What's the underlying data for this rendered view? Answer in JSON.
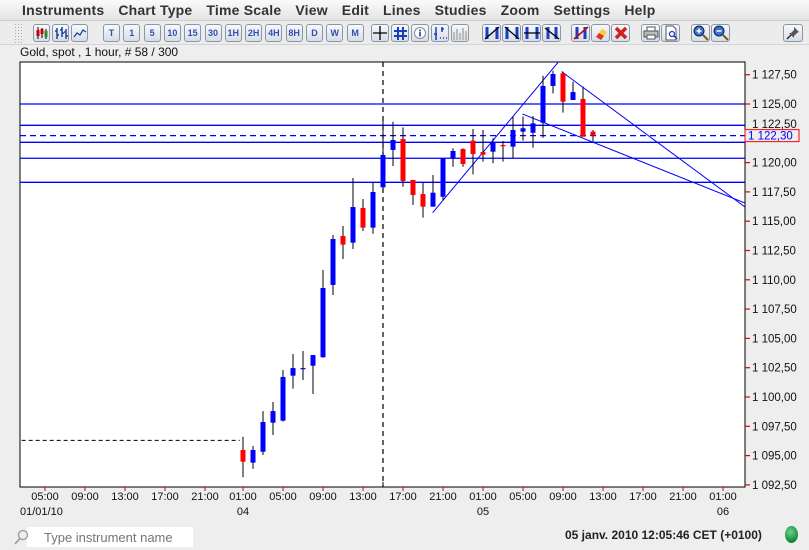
{
  "menu": [
    "Instruments",
    "Chart Type",
    "Time Scale",
    "View",
    "Edit",
    "Lines",
    "Studies",
    "Zoom",
    "Settings",
    "Help"
  ],
  "toolbar": {
    "chart_types": [
      "candlestick-icon",
      "bar-chart-icon",
      "line-chart-icon"
    ],
    "timeframes": [
      "T",
      "1",
      "5",
      "10",
      "15",
      "30",
      "1H",
      "2H",
      "4H",
      "8H",
      "D",
      "W",
      "M"
    ],
    "tools": [
      "crosshair-icon",
      "grid-icon",
      "info-icon",
      "price-marker-icon",
      "volume-icon"
    ],
    "line_tools": [
      "line-up-icon",
      "line-down-icon",
      "horizontal-line-icon",
      "parallel-line-icon"
    ],
    "edit_tools": [
      "delete-line-icon",
      "eraser-icon",
      "delete-all-icon"
    ],
    "print_tools": [
      "print-icon",
      "print-preview-icon"
    ],
    "zoom_tools": [
      "zoom-in-icon",
      "zoom-out-icon"
    ],
    "pin": "pin-icon"
  },
  "info_line": "Gold, spot , 1 hour, # 58 / 300",
  "chart_data": {
    "type": "candlestick",
    "title": "Gold, spot , 1 hour, # 58 / 300",
    "colors": {
      "up": "#0000ff",
      "down": "#ff0000",
      "wick": "#000000",
      "lines": "#0000ff",
      "current_price_border": "#ff0000"
    },
    "ylim": [
      1092.5,
      1128.75
    ],
    "y_ticks": [
      "1 092,50",
      "1 095,00",
      "1 097,50",
      "1 100,00",
      "1 102,50",
      "1 105,00",
      "1 107,50",
      "1 110,00",
      "1 112,50",
      "1 115,00",
      "1 117,50",
      "1 120,00",
      "1 122,50",
      "1 125,00",
      "1 127,50"
    ],
    "y_tick_values": [
      1092.5,
      1095,
      1097.5,
      1100,
      1102.5,
      1105,
      1107.5,
      1110,
      1112.5,
      1115,
      1117.5,
      1120,
      1122.5,
      1125,
      1127.5
    ],
    "current_price": {
      "label": "1 122,30",
      "value": 1122.3
    },
    "x_ticks": [
      {
        "t": "01-01 05:00",
        "label": "05:00"
      },
      {
        "t": "01-01 09:00",
        "label": "09:00"
      },
      {
        "t": "01-01 13:00",
        "label": "13:00"
      },
      {
        "t": "01-01 17:00",
        "label": "17:00"
      },
      {
        "t": "01-01 21:00",
        "label": "21:00"
      },
      {
        "t": "01-04 01:00",
        "label": "01:00"
      },
      {
        "t": "01-04 05:00",
        "label": "05:00"
      },
      {
        "t": "01-04 09:00",
        "label": "09:00"
      },
      {
        "t": "01-04 13:00",
        "label": "13:00"
      },
      {
        "t": "01-04 17:00",
        "label": "17:00"
      },
      {
        "t": "01-04 21:00",
        "label": "21:00"
      },
      {
        "t": "01-05 01:00",
        "label": "01:00"
      },
      {
        "t": "01-05 05:00",
        "label": "05:00"
      },
      {
        "t": "01-05 09:00",
        "label": "09:00"
      },
      {
        "t": "01-05 13:00",
        "label": "13:00"
      },
      {
        "t": "01-05 17:00",
        "label": "17:00"
      },
      {
        "t": "01-05 21:00",
        "label": "21:00"
      },
      {
        "t": "01-06 01:00",
        "label": "01:00"
      }
    ],
    "date_labels": [
      {
        "t": "01-01 05:00",
        "label": "01/01/10"
      },
      {
        "t": "01-04 01:00",
        "label": "04"
      },
      {
        "t": "01-05 01:00",
        "label": "05"
      },
      {
        "t": "01-06 01:00",
        "label": "06"
      }
    ],
    "candles": [
      {
        "t": "01-04 01:00",
        "o": 1095.48,
        "h": 1096.61,
        "l": 1093.15,
        "c": 1094.48
      },
      {
        "t": "01-04 02:00",
        "o": 1094.4,
        "h": 1095.82,
        "l": 1093.88,
        "c": 1095.48
      },
      {
        "t": "01-04 03:00",
        "o": 1095.33,
        "h": 1098.8,
        "l": 1095.05,
        "c": 1097.87
      },
      {
        "t": "01-04 04:00",
        "o": 1097.81,
        "h": 1099.57,
        "l": 1096.76,
        "c": 1098.8
      },
      {
        "t": "01-04 05:00",
        "o": 1097.98,
        "h": 1102.3,
        "l": 1097.9,
        "c": 1101.71
      },
      {
        "t": "01-04 06:00",
        "o": 1101.82,
        "h": 1103.67,
        "l": 1100.71,
        "c": 1102.47
      },
      {
        "t": "01-04 07:00",
        "o": 1102.43,
        "h": 1103.93,
        "l": 1101.45,
        "c": 1102.47
      },
      {
        "t": "01-04 08:00",
        "o": 1102.67,
        "h": 1103.58,
        "l": 1100.26,
        "c": 1103.58
      },
      {
        "t": "01-04 09:00",
        "o": 1103.39,
        "h": 1110.84,
        "l": 1103.35,
        "c": 1109.3
      },
      {
        "t": "01-04 10:00",
        "o": 1109.56,
        "h": 1113.82,
        "l": 1108.7,
        "c": 1113.48
      },
      {
        "t": "01-04 11:00",
        "o": 1113.74,
        "h": 1114.59,
        "l": 1111.77,
        "c": 1113.0
      },
      {
        "t": "01-04 12:00",
        "o": 1113.17,
        "h": 1118.69,
        "l": 1112.63,
        "c": 1116.21
      },
      {
        "t": "01-04 13:00",
        "o": 1116.13,
        "h": 1116.89,
        "l": 1114.16,
        "c": 1114.45
      },
      {
        "t": "01-04 14:00",
        "o": 1114.45,
        "h": 1118.32,
        "l": 1113.93,
        "c": 1117.49
      },
      {
        "t": "01-04 15:00",
        "o": 1117.89,
        "h": 1123.63,
        "l": 1117.83,
        "c": 1120.65
      },
      {
        "t": "01-04 16:00",
        "o": 1121.08,
        "h": 1123.49,
        "l": 1119.71,
        "c": 1121.93
      },
      {
        "t": "01-04 17:00",
        "o": 1122.01,
        "h": 1123.01,
        "l": 1117.94,
        "c": 1118.43
      },
      {
        "t": "01-04 18:00",
        "o": 1118.52,
        "h": 1118.52,
        "l": 1116.38,
        "c": 1117.24
      },
      {
        "t": "01-04 19:00",
        "o": 1117.32,
        "h": 1118.28,
        "l": 1115.3,
        "c": 1116.24
      },
      {
        "t": "01-04 20:00",
        "o": 1116.24,
        "h": 1118.94,
        "l": 1116.24,
        "c": 1117.43
      },
      {
        "t": "01-04 21:00",
        "o": 1117.09,
        "h": 1120.37,
        "l": 1116.81,
        "c": 1120.37
      },
      {
        "t": "01-04 22:00",
        "o": 1120.37,
        "h": 1121.22,
        "l": 1119.65,
        "c": 1120.99
      },
      {
        "t": "01-04 23:00",
        "o": 1121.16,
        "h": 1121.22,
        "l": 1119.65,
        "c": 1119.88
      },
      {
        "t": "01-05 00:00",
        "o": 1121.87,
        "h": 1122.87,
        "l": 1119.0,
        "c": 1120.73
      },
      {
        "t": "01-05 01:00",
        "o": 1120.9,
        "h": 1122.78,
        "l": 1120.08,
        "c": 1120.67
      },
      {
        "t": "01-05 02:00",
        "o": 1120.93,
        "h": 1122.07,
        "l": 1119.94,
        "c": 1121.73
      },
      {
        "t": "01-05 03:00",
        "o": 1121.5,
        "h": 1121.84,
        "l": 1120.08,
        "c": 1121.4
      },
      {
        "t": "01-05 04:00",
        "o": 1121.36,
        "h": 1123.92,
        "l": 1120.37,
        "c": 1122.78
      },
      {
        "t": "01-05 05:00",
        "o": 1122.64,
        "h": 1123.92,
        "l": 1121.87,
        "c": 1122.93
      },
      {
        "t": "01-05 06:00",
        "o": 1122.55,
        "h": 1123.98,
        "l": 1121.27,
        "c": 1123.35
      },
      {
        "t": "01-05 07:00",
        "o": 1123.4,
        "h": 1127.41,
        "l": 1122.12,
        "c": 1126.54
      },
      {
        "t": "01-05 08:00",
        "o": 1126.54,
        "h": 1127.84,
        "l": 1125.91,
        "c": 1127.56
      },
      {
        "t": "01-05 09:00",
        "o": 1127.62,
        "h": 1127.76,
        "l": 1124.26,
        "c": 1125.2
      },
      {
        "t": "01-05 10:00",
        "o": 1125.34,
        "h": 1126.9,
        "l": 1125.34,
        "c": 1126.02
      },
      {
        "t": "01-05 11:00",
        "o": 1125.43,
        "h": 1126.48,
        "l": 1122.21,
        "c": 1122.21
      },
      {
        "t": "01-05 12:00",
        "o": 1122.64,
        "h": 1122.78,
        "l": 1121.78,
        "c": 1122.3
      }
    ],
    "horizontal_lines": [
      {
        "price": 1125.0,
        "style": "solid"
      },
      {
        "price": 1123.18,
        "style": "solid"
      },
      {
        "price": 1122.3,
        "style": "dashed"
      },
      {
        "price": 1121.73,
        "style": "solid"
      },
      {
        "price": 1120.37,
        "style": "solid"
      },
      {
        "price": 1118.32,
        "style": "solid"
      }
    ],
    "trend_lines": [
      {
        "from": {
          "t": "01-04 19:58",
          "p": 1115.73
        },
        "to": {
          "t": "01-05 08:42",
          "p": 1128.75
        }
      },
      {
        "from": {
          "t": "01-05 08:52",
          "p": 1127.76
        },
        "to": {
          "t": "01-06 03:12",
          "p": 1116.21
        }
      },
      {
        "from": {
          "t": "01-05 04:56",
          "p": 1124.15
        },
        "to": {
          "t": "01-06 03:12",
          "p": 1116.55
        }
      }
    ],
    "dashed_horizontal_segment": {
      "from": "01-01 02:40",
      "to": "01-04 00:40",
      "price": 1096.3
    },
    "vertical_marker": {
      "t": "01-04 15:00"
    }
  },
  "status": {
    "search_placeholder": "Type instrument name",
    "datetime": "05 janv. 2010 12:05:46  CET (+0100)",
    "connection_color": "#0c8a3a"
  }
}
